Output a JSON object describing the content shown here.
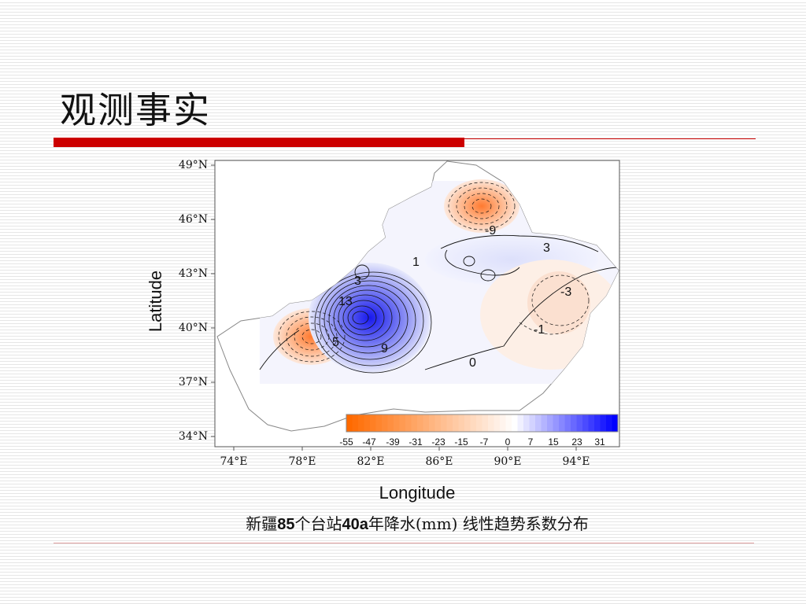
{
  "slide": {
    "title": "观测事实",
    "caption_parts": [
      "新疆",
      "85",
      "个台站",
      "40a",
      "年降水",
      "(mm)",
      " 线性趋势系数分布"
    ]
  },
  "map": {
    "ylabel": "Latitude",
    "xlabel": "Longitude",
    "lat_ticks": [
      "49°N",
      "46°N",
      "43°N",
      "40°N",
      "37°N",
      "34°N"
    ],
    "lon_ticks": [
      "74°E",
      "78°E",
      "82°E",
      "86°E",
      "90°E",
      "94°E"
    ],
    "contour_labels": [
      "9",
      "3",
      "1",
      "3",
      "13",
      "9",
      "5",
      "0",
      "-3",
      "-1",
      "-9"
    ],
    "colorbar_labels": [
      "-55",
      "-47",
      "-39",
      "-31",
      "-23",
      "-15",
      "-7",
      "0",
      "7",
      "15",
      "23",
      "31"
    ],
    "colors": {
      "negative": "#ff6a00",
      "positive": "#0000ff",
      "zero": "#ffffff"
    }
  }
}
